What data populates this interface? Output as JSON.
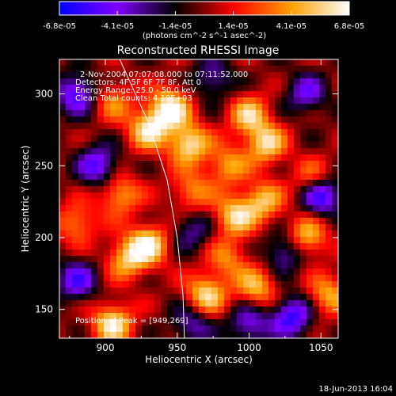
{
  "chart_data": {
    "type": "heatmap",
    "title": "Reconstructed RHESSI Image",
    "xlabel": "Heliocentric X (arcsec)",
    "ylabel": "Heliocentric Y (arcsec)",
    "xlim": [
      868,
      1062
    ],
    "ylim": [
      130,
      324
    ],
    "x_ticks": [
      900,
      950,
      1000,
      1050
    ],
    "y_ticks": [
      150,
      200,
      250,
      300
    ],
    "colorbar": {
      "ticks": [
        "-6.8e-05",
        "-4.1e-05",
        "-1.4e-05",
        "1.4e-05",
        "4.1e-05",
        "6.8e-05"
      ],
      "range": [
        -6.8e-05,
        6.8e-05
      ],
      "unit_label": "(photons cm^-2 s^-1 asec^-2)",
      "colors": [
        "#0000ff",
        "#8000ff",
        "#000000",
        "#ff0000",
        "#ffa000",
        "#ffffff"
      ]
    },
    "annotations": [
      "2-Nov-2004 07:07:08.000 to 07:11:52.000",
      "Detectors: 4F 5F 6F 7F 8F, Att 0",
      "Energy Range: 25.0 - 50.0 keV",
      "Clean     Total counts: 4.19E+03"
    ],
    "peak_label": "Position of Peak = [949,269]",
    "peak_position": [
      949,
      269
    ],
    "limb_curve": [
      [
        910,
        324
      ],
      [
        930,
        280
      ],
      [
        943,
        240
      ],
      [
        950,
        200
      ],
      [
        954,
        160
      ],
      [
        955,
        130
      ]
    ],
    "hotspots": [
      {
        "x": 945,
        "y": 290,
        "v": 1.0
      },
      {
        "x": 930,
        "y": 275,
        "v": 0.85
      },
      {
        "x": 958,
        "y": 265,
        "v": 0.9
      },
      {
        "x": 1000,
        "y": 285,
        "v": 0.75
      },
      {
        "x": 1012,
        "y": 265,
        "v": 0.8
      },
      {
        "x": 985,
        "y": 250,
        "v": 0.6
      },
      {
        "x": 960,
        "y": 232,
        "v": 0.55
      },
      {
        "x": 910,
        "y": 230,
        "v": 0.65
      },
      {
        "x": 930,
        "y": 195,
        "v": 0.9
      },
      {
        "x": 915,
        "y": 185,
        "v": 0.7
      },
      {
        "x": 990,
        "y": 215,
        "v": 0.8
      },
      {
        "x": 1010,
        "y": 225,
        "v": 0.7
      },
      {
        "x": 1045,
        "y": 240,
        "v": 0.6
      },
      {
        "x": 1040,
        "y": 200,
        "v": 0.75
      },
      {
        "x": 970,
        "y": 160,
        "v": 0.85
      },
      {
        "x": 1005,
        "y": 165,
        "v": 0.7
      },
      {
        "x": 1055,
        "y": 160,
        "v": 0.65
      },
      {
        "x": 905,
        "y": 140,
        "v": 0.9
      },
      {
        "x": 985,
        "y": 185,
        "v": 0.5
      },
      {
        "x": 880,
        "y": 210,
        "v": 0.55
      },
      {
        "x": 905,
        "y": 295,
        "v": 0.5
      }
    ],
    "coldspots": [
      {
        "x": 880,
        "y": 300,
        "v": -0.8
      },
      {
        "x": 895,
        "y": 250,
        "v": -0.75
      },
      {
        "x": 880,
        "y": 170,
        "v": -0.7
      },
      {
        "x": 1040,
        "y": 300,
        "v": -0.6
      },
      {
        "x": 1050,
        "y": 230,
        "v": -1.0
      },
      {
        "x": 1025,
        "y": 190,
        "v": -0.6
      },
      {
        "x": 1030,
        "y": 145,
        "v": -0.85
      },
      {
        "x": 1000,
        "y": 140,
        "v": -0.65
      },
      {
        "x": 960,
        "y": 205,
        "v": -0.45
      },
      {
        "x": 975,
        "y": 310,
        "v": -0.5
      },
      {
        "x": 960,
        "y": 140,
        "v": -0.55
      }
    ]
  },
  "footer": {
    "timestamp": "18-Jun-2013 16:04"
  }
}
